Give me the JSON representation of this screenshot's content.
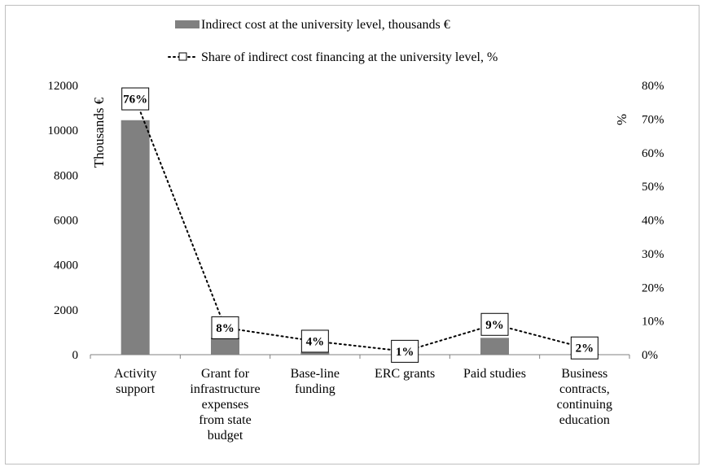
{
  "chart_data": {
    "type": "bar",
    "categories": [
      [
        "Activity",
        "support"
      ],
      [
        "Grant for",
        "infrastructure",
        "expenses",
        "from state",
        "budget"
      ],
      [
        "Base-line",
        "funding"
      ],
      [
        "ERC grants"
      ],
      [
        "Paid studies"
      ],
      [
        "Business",
        "contracts,",
        "continuing",
        "education"
      ]
    ],
    "series": [
      {
        "name": "Indirect cost at the university level, thousands €",
        "type": "bar",
        "axis": "left",
        "values": [
          10450,
          750,
          100,
          15,
          750,
          40
        ],
        "color": "#808080"
      },
      {
        "name": "Share of indirect cost financing at the university level, %",
        "type": "line",
        "axis": "right",
        "style": "dotted",
        "values": [
          76,
          8,
          4,
          1,
          9,
          2
        ],
        "labels": [
          "76%",
          "8%",
          "4%",
          "1%",
          "9%",
          "2%"
        ],
        "color": "#000000"
      }
    ],
    "ylabel": "Thousands €",
    "ylabel_right": "%",
    "ylim": [
      0,
      12000
    ],
    "yticks": [
      "0",
      "2000",
      "4000",
      "6000",
      "8000",
      "10000",
      "12000"
    ],
    "ylim_right": [
      0,
      80
    ],
    "yticks_right": [
      "0%",
      "10%",
      "20%",
      "30%",
      "40%",
      "50%",
      "60%",
      "70%",
      "80%"
    ],
    "grid": false,
    "legend_position": "top"
  }
}
